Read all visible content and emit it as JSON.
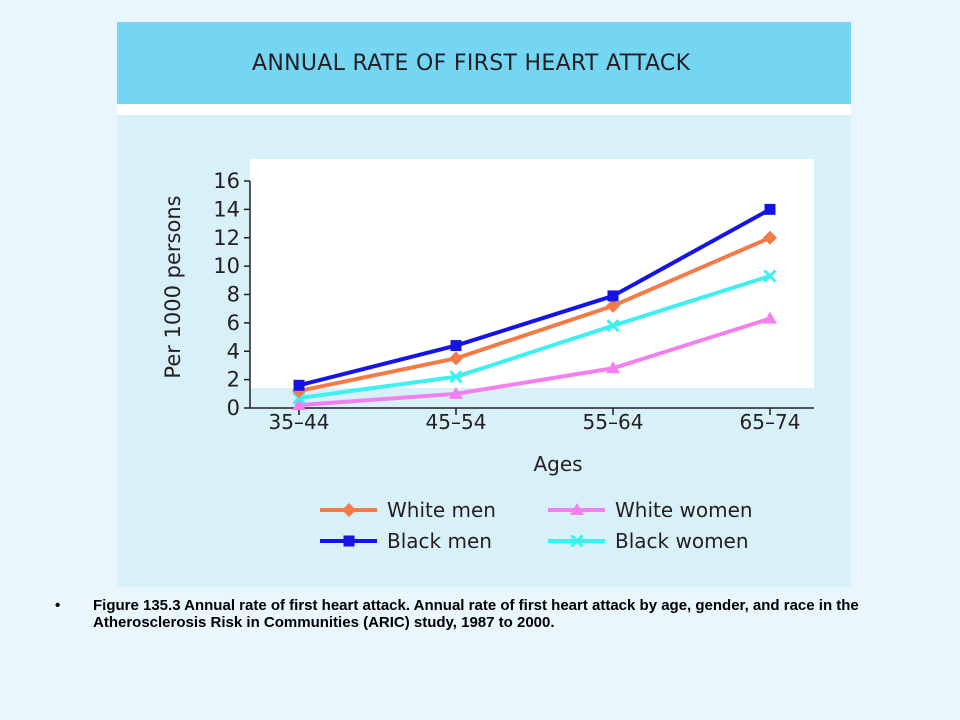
{
  "chart_data": {
    "type": "line",
    "title": "ANNUAL RATE OF FIRST HEART ATTACK",
    "xlabel": "Ages",
    "ylabel": "Per 1000 persons",
    "categories": [
      "35–44",
      "45–54",
      "55–64",
      "65–74"
    ],
    "ylim": [
      0,
      16
    ],
    "yticks": [
      0,
      2,
      4,
      6,
      8,
      10,
      12,
      14,
      16
    ],
    "grid": false,
    "legend_position": "bottom",
    "series": [
      {
        "name": "White men",
        "values": [
          1.2,
          3.5,
          7.2,
          12.0
        ],
        "color": "#f47a46",
        "marker": "diamond"
      },
      {
        "name": "White women",
        "values": [
          0.2,
          1.0,
          2.8,
          6.3
        ],
        "color": "#f47ff0",
        "marker": "triangle"
      },
      {
        "name": "Black men",
        "values": [
          1.6,
          4.4,
          7.9,
          14.0
        ],
        "color": "#1414e6",
        "marker": "square"
      },
      {
        "name": "Black women",
        "values": [
          0.7,
          2.2,
          5.8,
          9.3
        ],
        "color": "#3ef0f0",
        "marker": "x"
      }
    ]
  },
  "caption": {
    "bullet": "•",
    "text": "Figure 135.3  Annual rate of first heart attack. Annual rate of first heart attack by age, gender, and race in the Atherosclerosis Risk in Communities (ARIC) study, 1987 to 2000."
  }
}
